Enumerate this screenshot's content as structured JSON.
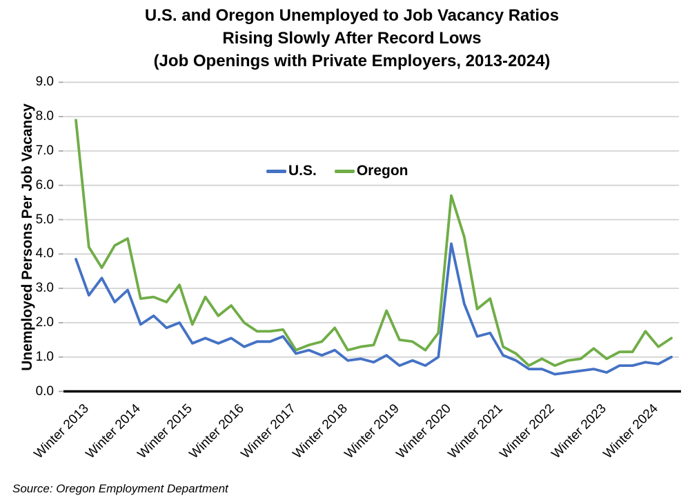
{
  "title": {
    "line1": "U.S. and Oregon Unemployed to Job Vacancy Ratios",
    "line2": "Rising Slowly After Record Lows",
    "line3": "(Job Openings with Private Employers, 2013-2024)"
  },
  "y_axis": {
    "title": "Unemployed Persons Per Job Vacancy",
    "tick_labels": [
      "0.0",
      "1.0",
      "2.0",
      "3.0",
      "4.0",
      "5.0",
      "6.0",
      "7.0",
      "8.0",
      "9.0"
    ]
  },
  "x_axis": {
    "tick_labels": [
      "Winter 2013",
      "Winter 2014",
      "Winter 2015",
      "Winter 2016",
      "Winter 2017",
      "Winter 2018",
      "Winter 2019",
      "Winter 2020",
      "Winter 2021",
      "Winter 2022",
      "Winter 2023",
      "Winter 2024"
    ]
  },
  "legend": [
    {
      "label": "U.S.",
      "color": "#4472C4"
    },
    {
      "label": "Oregon",
      "color": "#70AD47"
    }
  ],
  "source": "Source: Oregon Employment Department",
  "colors": {
    "us_line": "#4472C4",
    "oregon_line": "#70AD47",
    "gridline": "#D2D2D2",
    "tick_mark": "#A6A6A6",
    "axis_line": "#000000"
  },
  "chart_data": {
    "type": "line",
    "title": "U.S. and Oregon Unemployed to Job Vacancy Ratios Rising Slowly After Record Lows (Job Openings with Private Employers, 2013-2024)",
    "ylabel": "Unemployed Persons Per Job Vacancy",
    "xlabel": "",
    "ylim": [
      0,
      9
    ],
    "ytick_step": 1.0,
    "grid": true,
    "legend_position": "inside-top-center",
    "xtick_labels": [
      "Winter 2013",
      "Winter 2014",
      "Winter 2015",
      "Winter 2016",
      "Winter 2017",
      "Winter 2018",
      "Winter 2019",
      "Winter 2020",
      "Winter 2021",
      "Winter 2022",
      "Winter 2023",
      "Winter 2024"
    ],
    "x": [
      "Winter 2013",
      "Spring 2013",
      "Summer 2013",
      "Fall 2013",
      "Winter 2014",
      "Spring 2014",
      "Summer 2014",
      "Fall 2014",
      "Winter 2015",
      "Spring 2015",
      "Summer 2015",
      "Fall 2015",
      "Winter 2016",
      "Spring 2016",
      "Summer 2016",
      "Fall 2016",
      "Winter 2017",
      "Spring 2017",
      "Summer 2017",
      "Fall 2017",
      "Winter 2018",
      "Spring 2018",
      "Summer 2018",
      "Fall 2018",
      "Winter 2019",
      "Spring 2019",
      "Summer 2019",
      "Fall 2019",
      "Winter 2020",
      "Spring 2020",
      "Summer 2020",
      "Fall 2020",
      "Winter 2021",
      "Spring 2021",
      "Summer 2021",
      "Fall 2021",
      "Winter 2022",
      "Spring 2022",
      "Summer 2022",
      "Fall 2022",
      "Winter 2023",
      "Spring 2023",
      "Summer 2023",
      "Fall 2023",
      "Winter 2024",
      "Spring 2024",
      "Summer 2024"
    ],
    "series": [
      {
        "name": "U.S.",
        "color": "#4472C4",
        "values": [
          3.85,
          2.8,
          3.3,
          2.6,
          2.95,
          1.95,
          2.2,
          1.85,
          2.0,
          1.4,
          1.55,
          1.4,
          1.55,
          1.3,
          1.45,
          1.45,
          1.6,
          1.1,
          1.2,
          1.05,
          1.2,
          0.9,
          0.95,
          0.85,
          1.05,
          0.75,
          0.9,
          0.75,
          1.0,
          4.3,
          2.55,
          1.6,
          1.7,
          1.05,
          0.9,
          0.65,
          0.65,
          0.5,
          0.55,
          0.6,
          0.65,
          0.55,
          0.75,
          0.75,
          0.85,
          0.8,
          1.0
        ]
      },
      {
        "name": "Oregon",
        "color": "#70AD47",
        "values": [
          7.9,
          4.2,
          3.6,
          4.25,
          4.45,
          2.7,
          2.75,
          2.6,
          3.1,
          1.95,
          2.75,
          2.2,
          2.5,
          2.0,
          1.75,
          1.75,
          1.8,
          1.2,
          1.35,
          1.45,
          1.85,
          1.2,
          1.3,
          1.35,
          2.35,
          1.5,
          1.45,
          1.2,
          1.7,
          5.7,
          4.5,
          2.4,
          2.7,
          1.3,
          1.1,
          0.75,
          0.95,
          0.75,
          0.9,
          0.95,
          1.25,
          0.95,
          1.15,
          1.15,
          1.75,
          1.3,
          1.55
        ]
      }
    ]
  }
}
